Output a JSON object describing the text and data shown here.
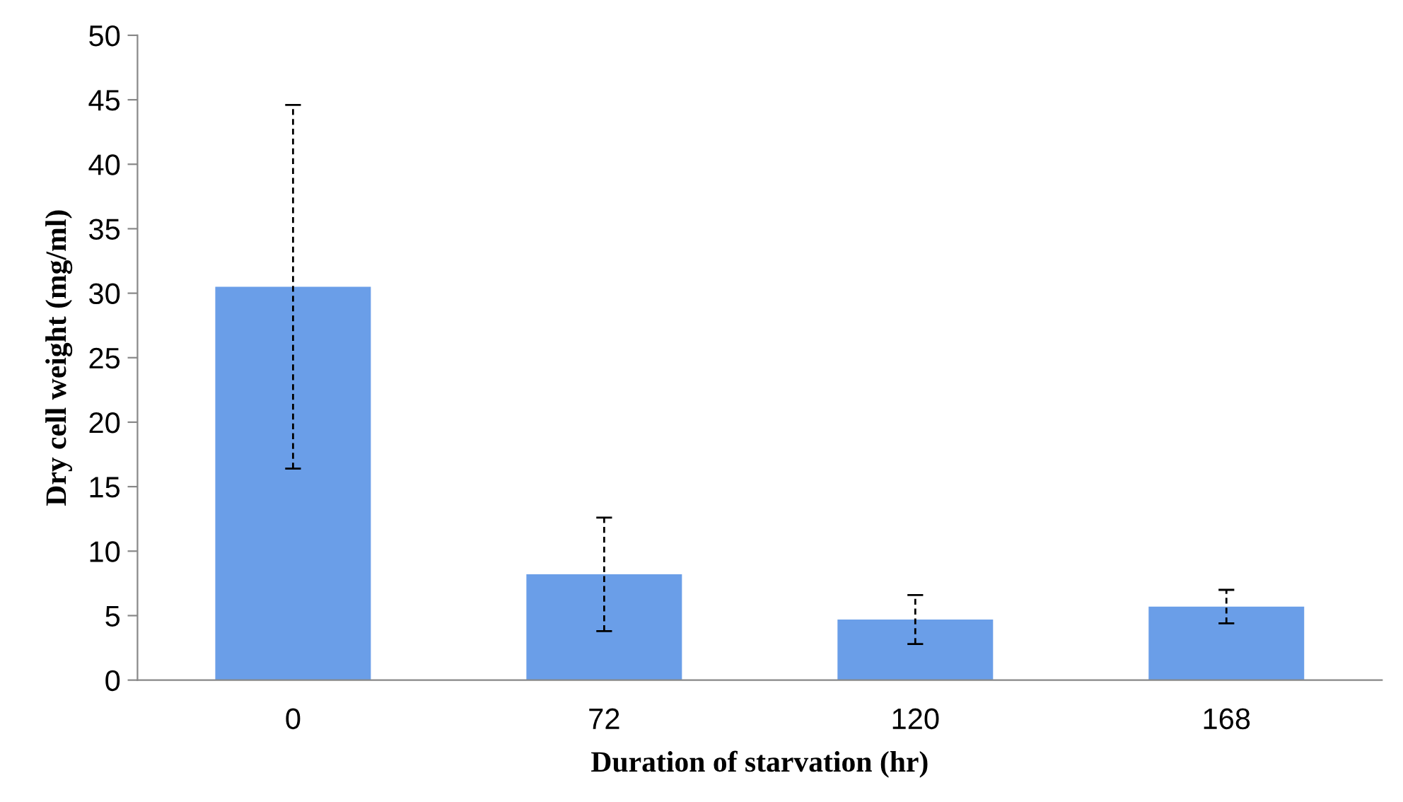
{
  "chart_data": {
    "type": "bar",
    "xlabel": "Duration of starvation (hr)",
    "ylabel": "Dry cell weight (mg/ml)",
    "categories": [
      "0",
      "72",
      "120",
      "168"
    ],
    "values": [
      30.5,
      8.2,
      4.7,
      5.7
    ],
    "errors": [
      14.1,
      4.4,
      1.9,
      1.3
    ],
    "color": "#6a9ee8",
    "ylim": [
      0,
      50
    ],
    "yticks": [
      0,
      5,
      10,
      15,
      20,
      25,
      30,
      35,
      40,
      45,
      50
    ],
    "grid": false,
    "legend": false
  }
}
